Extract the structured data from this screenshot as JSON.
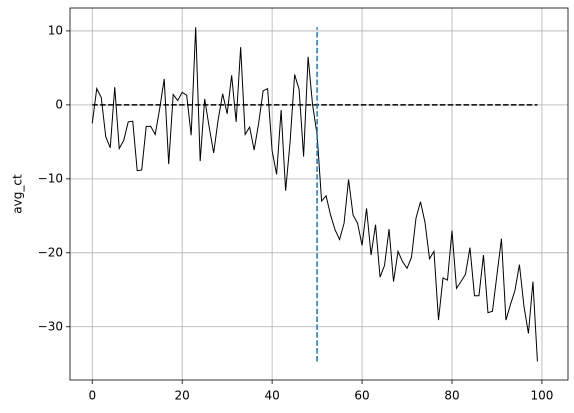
{
  "chart_data": {
    "type": "line",
    "ylabel": "avg_ct",
    "xlim": [
      -4.95,
      105.8
    ],
    "ylim": [
      -37.2,
      13.1
    ],
    "xticks": [
      0,
      20,
      40,
      60,
      80,
      100
    ],
    "yticks": [
      {
        "value": -30,
        "label": "−30"
      },
      {
        "value": -20,
        "label": "−20"
      },
      {
        "value": -10,
        "label": "−10"
      },
      0,
      10
    ],
    "grid": true,
    "series": [
      {
        "color": "#000000",
        "style": "solid",
        "x": [
          0,
          1,
          2,
          3,
          4,
          5,
          6,
          7,
          8,
          9,
          10,
          11,
          12,
          13,
          14,
          15,
          16,
          17,
          18,
          19,
          20,
          21,
          22,
          23,
          24,
          25,
          26,
          27,
          28,
          29,
          30,
          31,
          32,
          33,
          34,
          35,
          36,
          37,
          38,
          39,
          40,
          41,
          42,
          43,
          44,
          45,
          46,
          47,
          48,
          49,
          50,
          51,
          52,
          53,
          54,
          55,
          56,
          57,
          58,
          59,
          60,
          61,
          62,
          63,
          64,
          65,
          66,
          67,
          68,
          69,
          70,
          71,
          72,
          73,
          74,
          75,
          76,
          77,
          78,
          79,
          80,
          81,
          82,
          83,
          84,
          85,
          86,
          87,
          88,
          89,
          90,
          91,
          92,
          93,
          94,
          95,
          96,
          97,
          98,
          99
        ],
        "values": [
          -2.5,
          2.2,
          1.0,
          -4.3,
          -5.8,
          2.4,
          -5.9,
          -4.8,
          -2.3,
          -2.2,
          -8.9,
          -8.8,
          -2.9,
          -2.9,
          -4.0,
          -0.5,
          3.5,
          -8.0,
          1.4,
          0.6,
          1.7,
          1.3,
          -4.1,
          10.5,
          -7.6,
          0.8,
          -3.0,
          -6.5,
          -2.0,
          1.5,
          -1.2,
          4.0,
          -2.3,
          7.8,
          -4.0,
          -3.0,
          -6.1,
          -2.5,
          1.9,
          2.2,
          -6.2,
          -9.4,
          -0.7,
          -11.6,
          -5.0,
          4.1,
          2.1,
          -7.0,
          6.5,
          0.0,
          -4.0,
          -13.0,
          -12.3,
          -14.9,
          -16.9,
          -18.2,
          -16.0,
          -10.1,
          -14.9,
          -16.0,
          -19.0,
          -14.0,
          -20.3,
          -16.2,
          -23.3,
          -21.7,
          -16.8,
          -23.9,
          -19.8,
          -21.2,
          -22.1,
          -20.6,
          -15.3,
          -13.1,
          -15.9,
          -20.8,
          -19.8,
          -29.1,
          -23.4,
          -23.7,
          -17.0,
          -24.8,
          -23.9,
          -22.9,
          -19.3,
          -25.8,
          -25.8,
          -20.3,
          -28.1,
          -27.9,
          -23.0,
          -18.1,
          -29.1,
          -27.0,
          -25.1,
          -21.6,
          -27.2,
          -30.9,
          -23.9,
          -34.7
        ]
      },
      {
        "color": "#000000",
        "style": "dashed",
        "x": [
          0,
          99
        ],
        "values": [
          0,
          0
        ]
      },
      {
        "color": "#1f77b4",
        "style": "dashed",
        "x": [
          50,
          50
        ],
        "values": [
          -34.7,
          10.5
        ]
      }
    ]
  }
}
